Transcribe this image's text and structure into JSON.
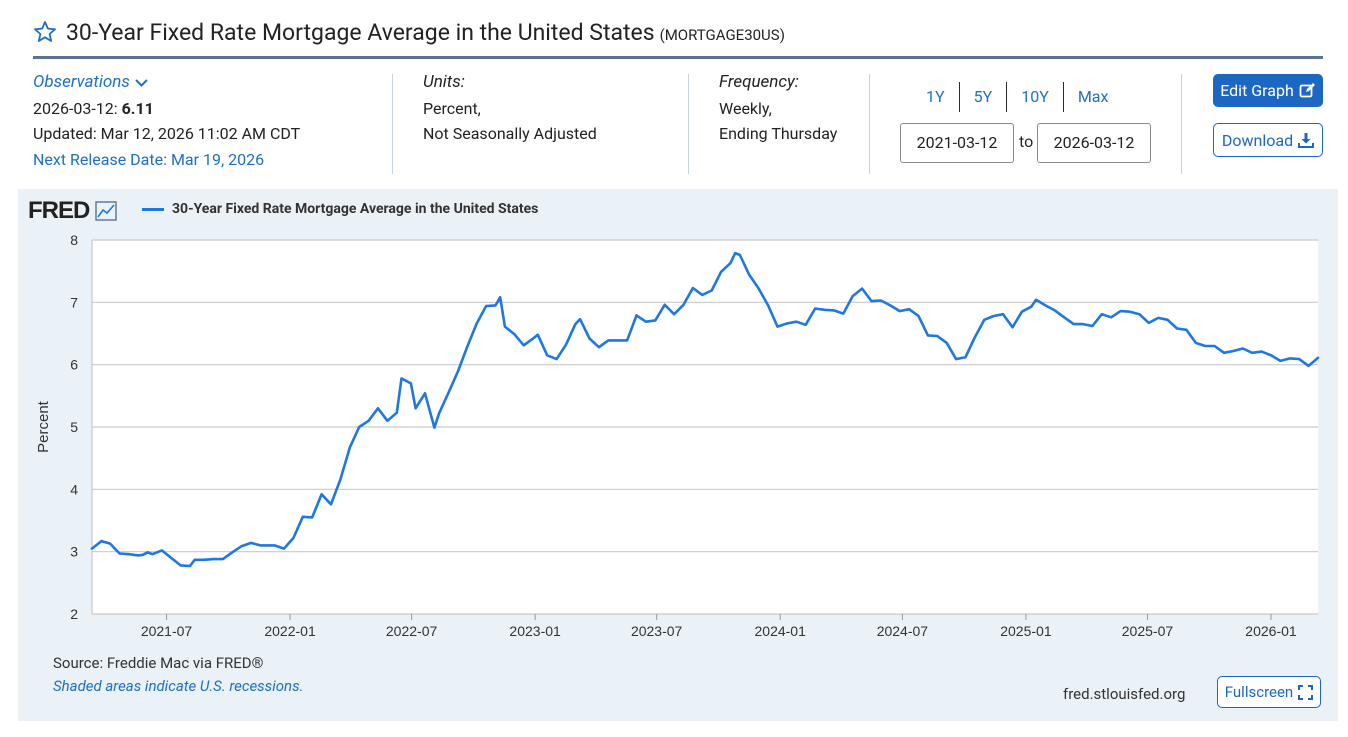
{
  "header": {
    "title": "30-Year Fixed Rate Mortgage Average in the United States",
    "series_id": "(MORTGAGE30US)"
  },
  "meta": {
    "observations_label": "Observations",
    "latest_date": "2026-03-12:",
    "latest_value": "6.11",
    "updated": "Updated: Mar 12, 2026 11:02 AM CDT",
    "next_release": "Next Release Date: Mar 19, 2026",
    "units_label": "Units:",
    "units_line1": "Percent,",
    "units_line2": "Not Seasonally Adjusted",
    "frequency_label": "Frequency:",
    "frequency_line1": "Weekly,",
    "frequency_line2": "Ending Thursday"
  },
  "controls": {
    "ranges": [
      "1Y",
      "5Y",
      "10Y",
      "Max"
    ],
    "start_date": "2021-03-12",
    "to_label": "to",
    "end_date": "2026-03-12",
    "edit_label": "Edit Graph",
    "download_label": "Download",
    "fullscreen_label": "Fullscreen"
  },
  "footer": {
    "logo_text": "FRED",
    "source": "Source: Freddie Mac via FRED®",
    "recession_note": "Shaded areas indicate U.S. recessions.",
    "site": "fred.stlouisfed.org"
  },
  "colors": {
    "line": "#1f77e0",
    "accent": "#1c67c1",
    "panel": "#eaf1f7"
  },
  "chart_data": {
    "type": "line",
    "title": "",
    "xlabel": "",
    "ylabel": "Percent",
    "ylim": [
      2,
      8
    ],
    "xlim": [
      "2021-03-12",
      "2026-03-12"
    ],
    "yticks": [
      2,
      3,
      4,
      5,
      6,
      7,
      8
    ],
    "xticks": [
      "2021-07",
      "2022-01",
      "2022-07",
      "2023-01",
      "2023-07",
      "2024-01",
      "2024-07",
      "2025-01",
      "2025-07",
      "2026-01"
    ],
    "grid": true,
    "legend": "top-left",
    "series": [
      {
        "name": "30-Year Fixed Rate Mortgage Average in the United States",
        "points": [
          [
            "2021-03-12",
            3.05
          ],
          [
            "2021-03-26",
            3.17
          ],
          [
            "2021-04-08",
            3.13
          ],
          [
            "2021-04-22",
            2.97
          ],
          [
            "2021-05-06",
            2.96
          ],
          [
            "2021-05-20",
            2.94
          ],
          [
            "2021-05-27",
            2.95
          ],
          [
            "2021-06-03",
            2.99
          ],
          [
            "2021-06-10",
            2.96
          ],
          [
            "2021-06-24",
            3.02
          ],
          [
            "2021-07-08",
            2.9
          ],
          [
            "2021-07-22",
            2.78
          ],
          [
            "2021-08-05",
            2.77
          ],
          [
            "2021-08-12",
            2.87
          ],
          [
            "2021-08-26",
            2.87
          ],
          [
            "2021-09-09",
            2.88
          ],
          [
            "2021-09-23",
            2.88
          ],
          [
            "2021-10-07",
            2.99
          ],
          [
            "2021-10-21",
            3.09
          ],
          [
            "2021-11-04",
            3.14
          ],
          [
            "2021-11-18",
            3.1
          ],
          [
            "2021-11-25",
            3.1
          ],
          [
            "2021-12-09",
            3.1
          ],
          [
            "2021-12-23",
            3.05
          ],
          [
            "2022-01-06",
            3.22
          ],
          [
            "2022-01-20",
            3.56
          ],
          [
            "2022-02-03",
            3.55
          ],
          [
            "2022-02-17",
            3.92
          ],
          [
            "2022-03-03",
            3.76
          ],
          [
            "2022-03-17",
            4.16
          ],
          [
            "2022-03-31",
            4.67
          ],
          [
            "2022-04-14",
            5.0
          ],
          [
            "2022-04-28",
            5.1
          ],
          [
            "2022-05-12",
            5.3
          ],
          [
            "2022-05-26",
            5.1
          ],
          [
            "2022-06-09",
            5.23
          ],
          [
            "2022-06-16",
            5.78
          ],
          [
            "2022-06-30",
            5.7
          ],
          [
            "2022-07-07",
            5.3
          ],
          [
            "2022-07-21",
            5.54
          ],
          [
            "2022-08-04",
            4.99
          ],
          [
            "2022-08-11",
            5.22
          ],
          [
            "2022-08-25",
            5.55
          ],
          [
            "2022-09-08",
            5.89
          ],
          [
            "2022-09-22",
            6.29
          ],
          [
            "2022-10-06",
            6.66
          ],
          [
            "2022-10-20",
            6.94
          ],
          [
            "2022-11-03",
            6.95
          ],
          [
            "2022-11-10",
            7.08
          ],
          [
            "2022-11-17",
            6.61
          ],
          [
            "2022-12-01",
            6.49
          ],
          [
            "2022-12-15",
            6.31
          ],
          [
            "2022-12-29",
            6.42
          ],
          [
            "2023-01-05",
            6.48
          ],
          [
            "2023-01-19",
            6.15
          ],
          [
            "2023-02-02",
            6.09
          ],
          [
            "2023-02-16",
            6.32
          ],
          [
            "2023-03-02",
            6.65
          ],
          [
            "2023-03-09",
            6.73
          ],
          [
            "2023-03-23",
            6.42
          ],
          [
            "2023-04-06",
            6.28
          ],
          [
            "2023-04-20",
            6.39
          ],
          [
            "2023-05-04",
            6.39
          ],
          [
            "2023-05-18",
            6.39
          ],
          [
            "2023-06-01",
            6.79
          ],
          [
            "2023-06-15",
            6.69
          ],
          [
            "2023-06-29",
            6.71
          ],
          [
            "2023-07-13",
            6.96
          ],
          [
            "2023-07-27",
            6.81
          ],
          [
            "2023-08-10",
            6.96
          ],
          [
            "2023-08-24",
            7.23
          ],
          [
            "2023-09-07",
            7.12
          ],
          [
            "2023-09-21",
            7.19
          ],
          [
            "2023-10-05",
            7.49
          ],
          [
            "2023-10-19",
            7.63
          ],
          [
            "2023-10-26",
            7.79
          ],
          [
            "2023-11-02",
            7.76
          ],
          [
            "2023-11-16",
            7.44
          ],
          [
            "2023-11-30",
            7.22
          ],
          [
            "2023-12-14",
            6.95
          ],
          [
            "2023-12-28",
            6.61
          ],
          [
            "2024-01-11",
            6.66
          ],
          [
            "2024-01-25",
            6.69
          ],
          [
            "2024-02-08",
            6.64
          ],
          [
            "2024-02-22",
            6.9
          ],
          [
            "2024-03-07",
            6.88
          ],
          [
            "2024-03-21",
            6.87
          ],
          [
            "2024-04-04",
            6.82
          ],
          [
            "2024-04-18",
            7.1
          ],
          [
            "2024-05-02",
            7.22
          ],
          [
            "2024-05-16",
            7.02
          ],
          [
            "2024-05-30",
            7.03
          ],
          [
            "2024-06-13",
            6.95
          ],
          [
            "2024-06-27",
            6.86
          ],
          [
            "2024-07-11",
            6.89
          ],
          [
            "2024-07-25",
            6.78
          ],
          [
            "2024-08-08",
            6.47
          ],
          [
            "2024-08-22",
            6.46
          ],
          [
            "2024-09-05",
            6.35
          ],
          [
            "2024-09-19",
            6.09
          ],
          [
            "2024-10-03",
            6.12
          ],
          [
            "2024-10-17",
            6.44
          ],
          [
            "2024-10-31",
            6.72
          ],
          [
            "2024-11-14",
            6.78
          ],
          [
            "2024-11-28",
            6.81
          ],
          [
            "2024-12-12",
            6.6
          ],
          [
            "2024-12-26",
            6.85
          ],
          [
            "2025-01-09",
            6.93
          ],
          [
            "2025-01-16",
            7.04
          ],
          [
            "2025-01-30",
            6.95
          ],
          [
            "2025-02-13",
            6.87
          ],
          [
            "2025-02-27",
            6.76
          ],
          [
            "2025-03-13",
            6.65
          ],
          [
            "2025-03-27",
            6.65
          ],
          [
            "2025-04-10",
            6.62
          ],
          [
            "2025-04-24",
            6.81
          ],
          [
            "2025-05-08",
            6.76
          ],
          [
            "2025-05-22",
            6.86
          ],
          [
            "2025-06-05",
            6.85
          ],
          [
            "2025-06-19",
            6.81
          ],
          [
            "2025-07-03",
            6.67
          ],
          [
            "2025-07-17",
            6.75
          ],
          [
            "2025-07-31",
            6.72
          ],
          [
            "2025-08-14",
            6.58
          ],
          [
            "2025-08-28",
            6.56
          ],
          [
            "2025-09-11",
            6.35
          ],
          [
            "2025-09-25",
            6.3
          ],
          [
            "2025-10-09",
            6.3
          ],
          [
            "2025-10-23",
            6.19
          ],
          [
            "2025-11-06",
            6.22
          ],
          [
            "2025-11-20",
            6.26
          ],
          [
            "2025-12-04",
            6.19
          ],
          [
            "2025-12-18",
            6.21
          ],
          [
            "2026-01-01",
            6.15
          ],
          [
            "2026-01-15",
            6.06
          ],
          [
            "2026-01-29",
            6.1
          ],
          [
            "2026-02-12",
            6.09
          ],
          [
            "2026-02-26",
            5.98
          ],
          [
            "2026-03-12",
            6.11
          ]
        ]
      }
    ]
  }
}
